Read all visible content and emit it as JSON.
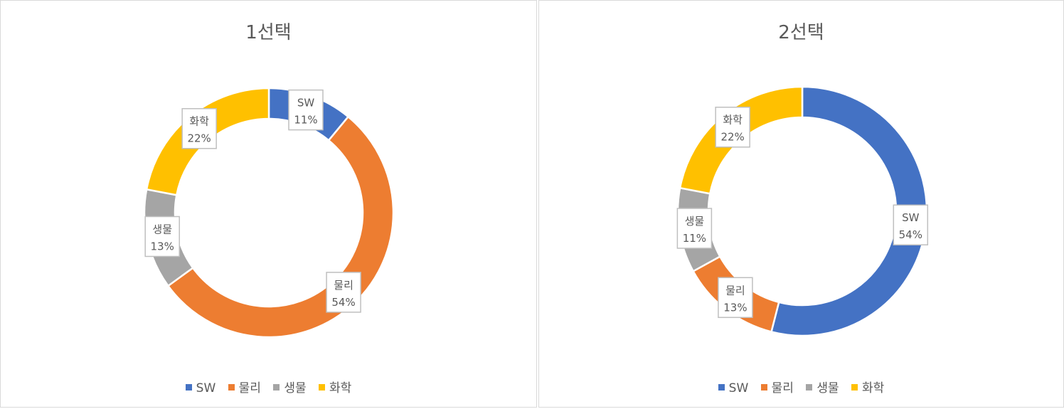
{
  "chart_data": [
    {
      "type": "donut",
      "title": "1선택",
      "categories": [
        "SW",
        "물리",
        "생물",
        "화학"
      ],
      "values": [
        11,
        54,
        13,
        22
      ],
      "labels": [
        "11%",
        "54%",
        "13%",
        "22%"
      ],
      "colors": [
        "#4472C4",
        "#ED7D31",
        "#A5A5A5",
        "#FFC000"
      ],
      "legend": "bottom"
    },
    {
      "type": "donut",
      "title": "2선택",
      "categories": [
        "SW",
        "물리",
        "생물",
        "화학"
      ],
      "values": [
        54,
        13,
        11,
        22
      ],
      "labels": [
        "54%",
        "13%",
        "11%",
        "22%"
      ],
      "colors": [
        "#4472C4",
        "#ED7D31",
        "#A5A5A5",
        "#FFC000"
      ],
      "legend": "bottom"
    }
  ]
}
